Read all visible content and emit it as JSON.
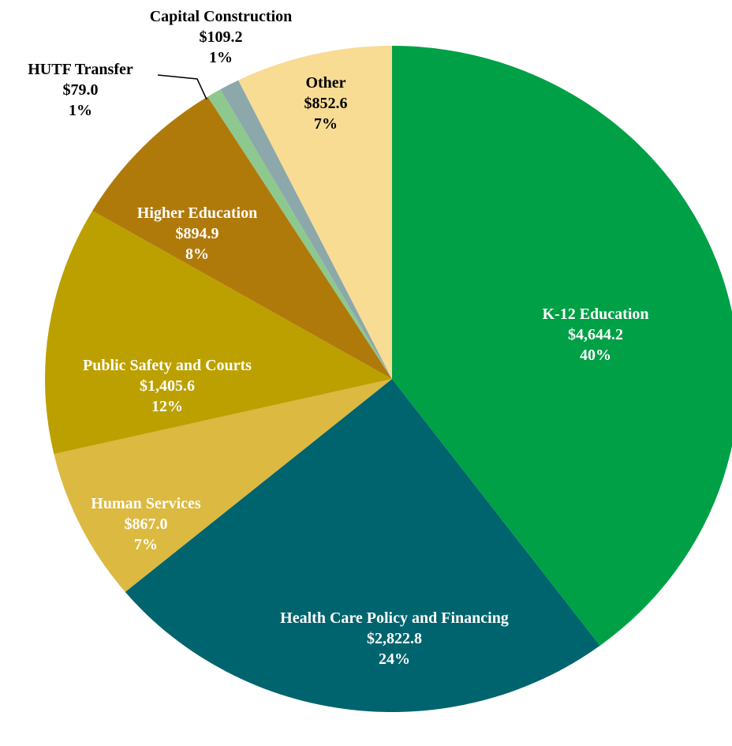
{
  "chart_data": {
    "type": "pie",
    "categories": [
      "K-12 Education",
      "Health Care Policy and Financing",
      "Human Services",
      "Public Safety and Courts",
      "Higher Education",
      "HUTF Transfer",
      "Capital Construction",
      "Other"
    ],
    "values": [
      4644.2,
      2822.8,
      867.0,
      1405.6,
      894.9,
      79.0,
      109.2,
      852.6
    ],
    "value_labels": [
      "$4,644.2",
      "$2,822.8",
      "$867.0",
      "$1,405.6",
      "$894.9",
      "$79.0",
      "$109.2",
      "$852.6"
    ],
    "share_labels": [
      "40%",
      "24%",
      "7%",
      "12%",
      "8%",
      "1%",
      "1%",
      "7%"
    ],
    "colors": [
      "#00a046",
      "#00646e",
      "#dcb941",
      "#bca000",
      "#b07a0b",
      "#8dc98e",
      "#8ca8aa",
      "#f8dc94"
    ]
  }
}
